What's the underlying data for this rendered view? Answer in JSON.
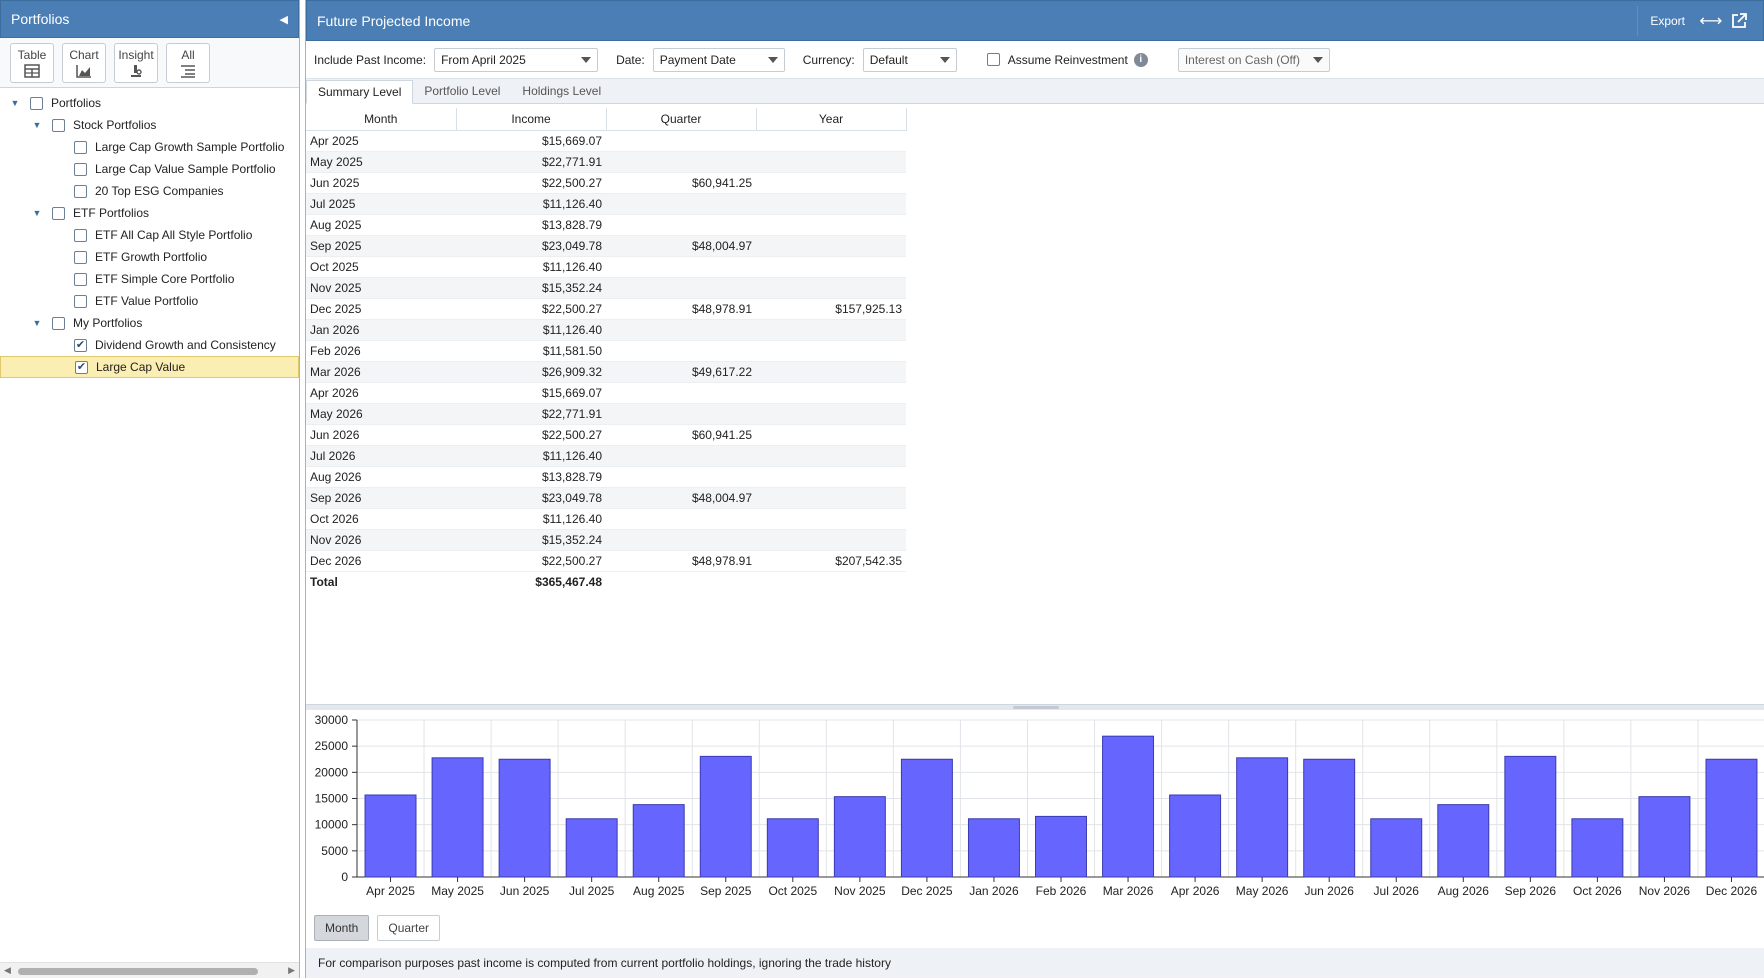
{
  "left": {
    "title": "Portfolios",
    "views": [
      {
        "label": "Table",
        "icon": "table-icon"
      },
      {
        "label": "Chart",
        "icon": "chart-icon"
      },
      {
        "label": "Insight",
        "icon": "insight-icon"
      },
      {
        "label": "All",
        "icon": "list-icon"
      }
    ],
    "tree": [
      {
        "label": "Portfolios",
        "level": 0,
        "expandable": true,
        "checked": false,
        "selected": false
      },
      {
        "label": "Stock Portfolios",
        "level": 1,
        "expandable": true,
        "checked": false,
        "selected": false
      },
      {
        "label": "Large Cap Growth Sample Portfolio",
        "level": 2,
        "expandable": false,
        "checked": false,
        "selected": false
      },
      {
        "label": "Large Cap Value Sample Portfolio",
        "level": 2,
        "expandable": false,
        "checked": false,
        "selected": false
      },
      {
        "label": "20 Top ESG Companies",
        "level": 2,
        "expandable": false,
        "checked": false,
        "selected": false
      },
      {
        "label": "ETF Portfolios",
        "level": 1,
        "expandable": true,
        "checked": false,
        "selected": false
      },
      {
        "label": "ETF All Cap All Style Portfolio",
        "level": 2,
        "expandable": false,
        "checked": false,
        "selected": false
      },
      {
        "label": "ETF Growth Portfolio",
        "level": 2,
        "expandable": false,
        "checked": false,
        "selected": false
      },
      {
        "label": "ETF Simple Core Portfolio",
        "level": 2,
        "expandable": false,
        "checked": false,
        "selected": false
      },
      {
        "label": "ETF Value Portfolio",
        "level": 2,
        "expandable": false,
        "checked": false,
        "selected": false
      },
      {
        "label": "My Portfolios",
        "level": 1,
        "expandable": true,
        "checked": false,
        "selected": false
      },
      {
        "label": "Dividend Growth and Consistency",
        "level": 2,
        "expandable": false,
        "checked": true,
        "selected": false
      },
      {
        "label": "Large Cap Value",
        "level": 2,
        "expandable": false,
        "checked": true,
        "selected": true
      }
    ]
  },
  "right": {
    "title": "Future Projected Income",
    "export_label": "Export",
    "filters": {
      "past_income_label": "Include Past Income:",
      "past_income_value": "From April 2025",
      "date_label": "Date:",
      "date_value": "Payment Date",
      "currency_label": "Currency:",
      "currency_value": "Default",
      "reinvest_label": "Assume Reinvestment",
      "interest_value": "Interest on Cash (Off)"
    },
    "tabs": [
      "Summary Level",
      "Portfolio Level",
      "Holdings Level"
    ],
    "table": {
      "columns": [
        "Month",
        "Income",
        "Quarter",
        "Year"
      ],
      "rows": [
        [
          "Apr 2025",
          "$15,669.07",
          "",
          ""
        ],
        [
          "May 2025",
          "$22,771.91",
          "",
          ""
        ],
        [
          "Jun 2025",
          "$22,500.27",
          "$60,941.25",
          ""
        ],
        [
          "Jul 2025",
          "$11,126.40",
          "",
          ""
        ],
        [
          "Aug 2025",
          "$13,828.79",
          "",
          ""
        ],
        [
          "Sep 2025",
          "$23,049.78",
          "$48,004.97",
          ""
        ],
        [
          "Oct 2025",
          "$11,126.40",
          "",
          ""
        ],
        [
          "Nov 2025",
          "$15,352.24",
          "",
          ""
        ],
        [
          "Dec 2025",
          "$22,500.27",
          "$48,978.91",
          "$157,925.13"
        ],
        [
          "Jan 2026",
          "$11,126.40",
          "",
          ""
        ],
        [
          "Feb 2026",
          "$11,581.50",
          "",
          ""
        ],
        [
          "Mar 2026",
          "$26,909.32",
          "$49,617.22",
          ""
        ],
        [
          "Apr 2026",
          "$15,669.07",
          "",
          ""
        ],
        [
          "May 2026",
          "$22,771.91",
          "",
          ""
        ],
        [
          "Jun 2026",
          "$22,500.27",
          "$60,941.25",
          ""
        ],
        [
          "Jul 2026",
          "$11,126.40",
          "",
          ""
        ],
        [
          "Aug 2026",
          "$13,828.79",
          "",
          ""
        ],
        [
          "Sep 2026",
          "$23,049.78",
          "$48,004.97",
          ""
        ],
        [
          "Oct 2026",
          "$11,126.40",
          "",
          ""
        ],
        [
          "Nov 2026",
          "$15,352.24",
          "",
          ""
        ],
        [
          "Dec 2026",
          "$22,500.27",
          "$48,978.91",
          "$207,542.35"
        ]
      ],
      "total_label": "Total",
      "total_value": "$365,467.48"
    },
    "granularity": [
      "Month",
      "Quarter"
    ],
    "active_granularity": "Month",
    "footnote": "For comparison purposes past income is computed from current portfolio holdings, ignoring the trade history"
  },
  "colors": {
    "header_blue": "#4a7eb5",
    "bar_fill": "#6666ff",
    "bar_stroke": "#3a3ab0",
    "selected_row": "#fbeeb2"
  },
  "chart_data": {
    "type": "bar",
    "categories": [
      "Apr 2025",
      "May 2025",
      "Jun 2025",
      "Jul 2025",
      "Aug 2025",
      "Sep 2025",
      "Oct 2025",
      "Nov 2025",
      "Dec 2025",
      "Jan 2026",
      "Feb 2026",
      "Mar 2026",
      "Apr 2026",
      "May 2026",
      "Jun 2026",
      "Jul 2026",
      "Aug 2026",
      "Sep 2026",
      "Oct 2026",
      "Nov 2026",
      "Dec 2026"
    ],
    "values": [
      15669.07,
      22771.91,
      22500.27,
      11126.4,
      13828.79,
      23049.78,
      11126.4,
      15352.24,
      22500.27,
      11126.4,
      11581.5,
      26909.32,
      15669.07,
      22771.91,
      22500.27,
      11126.4,
      13828.79,
      23049.78,
      11126.4,
      15352.24,
      22500.27
    ],
    "yticks": [
      "30000",
      "25000",
      "20000",
      "15000",
      "10000",
      "5000",
      "0"
    ],
    "ylim": [
      0,
      30000
    ],
    "grid": true,
    "title": "",
    "xlabel": "",
    "ylabel": ""
  }
}
